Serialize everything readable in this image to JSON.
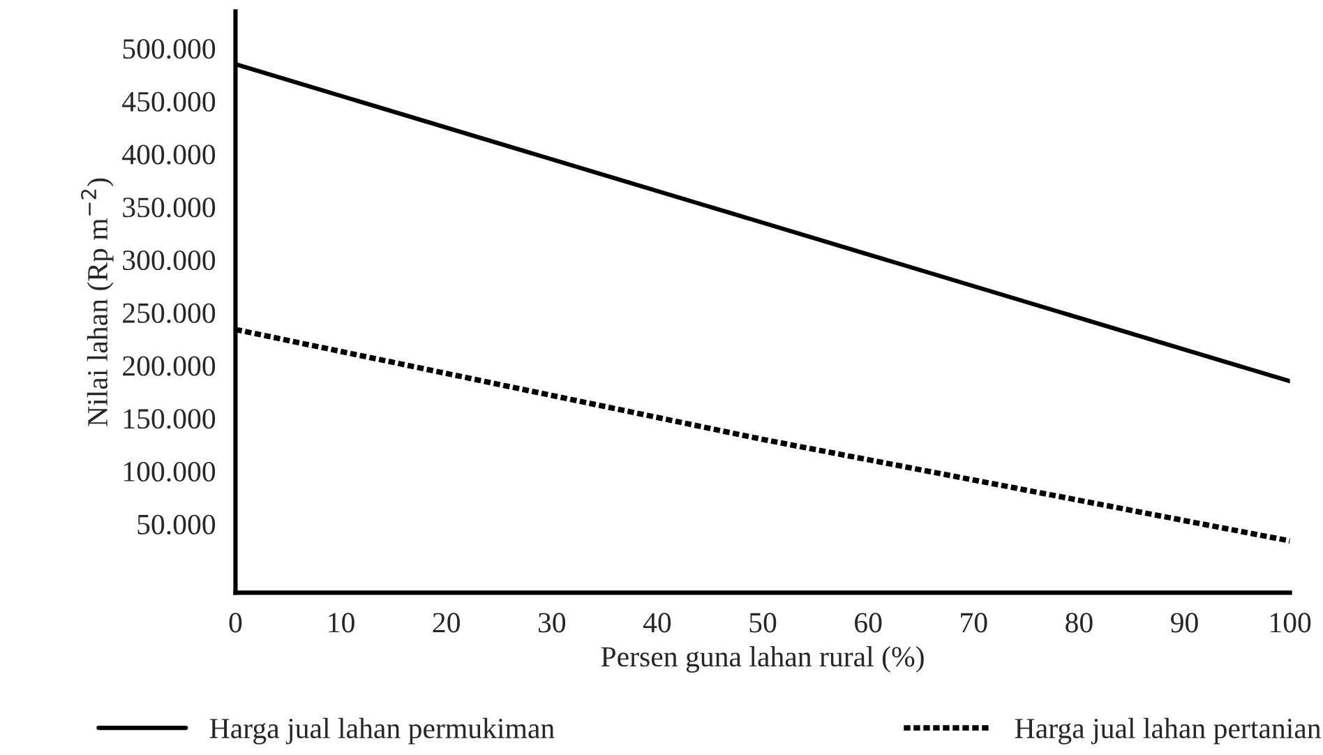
{
  "chart_data": {
    "type": "line",
    "xlabel": "Persen guna lahan rural (%)",
    "ylabel": "Nilai lahan (Rp m$^{−2}$)",
    "x": [
      0,
      50,
      100
    ],
    "series": [
      {
        "name": "Harga jual lahan permukiman",
        "color": "#000000",
        "values": [
          485000,
          335000,
          185000
        ],
        "line_style": "solid"
      },
      {
        "name": "Harga jual lahan pertanian",
        "color": "#000000",
        "values": [
          234000,
          130000,
          34000
        ],
        "line_style": "dotted"
      }
    ],
    "xlim": [
      0,
      100
    ],
    "xticks": [
      0,
      10,
      20,
      30,
      40,
      50,
      60,
      70,
      80,
      90,
      100
    ],
    "ylim": [
      -15000,
      535000
    ],
    "yticks": [
      {
        "value": 50000,
        "label": "50.000"
      },
      {
        "value": 100000,
        "label": "100.000"
      },
      {
        "value": 150000,
        "label": "150.000"
      },
      {
        "value": 200000,
        "label": "200.000"
      },
      {
        "value": 250000,
        "label": "250.000"
      },
      {
        "value": 300000,
        "label": "300.000"
      },
      {
        "value": 350000,
        "label": "350.000"
      },
      {
        "value": 400000,
        "label": "400.000"
      },
      {
        "value": 450000,
        "label": "450.000"
      },
      {
        "value": 500000,
        "label": "500.000"
      }
    ],
    "grid": false,
    "legend": "bottom",
    "marker": "none"
  }
}
